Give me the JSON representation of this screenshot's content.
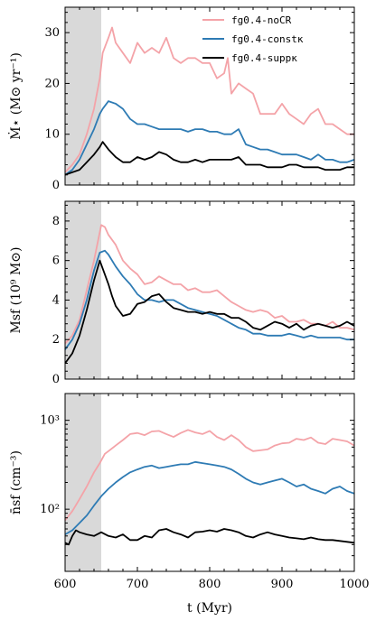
{
  "figure": {
    "xlabel": "t (Myr)",
    "x_ticks": [
      "600",
      "700",
      "800",
      "900",
      "1000"
    ],
    "shade_x": [
      600,
      650
    ],
    "shade_color": "#d9d9d9"
  },
  "series_styles": [
    {
      "name": "fg0.4-noCR",
      "color": "#f4a3a8"
    },
    {
      "name": "fg0.4-constκ",
      "color": "#2e7bb4"
    },
    {
      "name": "fg0.4-suppκ",
      "color": "#000000"
    }
  ],
  "chart_data": [
    {
      "type": "line",
      "id": "sfr",
      "ylabel": "Ṁ⋆ (M⊙ yr⁻¹)",
      "xlim": [
        600,
        1000
      ],
      "ylim": [
        0,
        35
      ],
      "yscale": "linear",
      "y_ticks": [
        {
          "v": 0,
          "label": "0"
        },
        {
          "v": 10,
          "label": "10"
        },
        {
          "v": 20,
          "label": "20"
        },
        {
          "v": 30,
          "label": "30"
        }
      ],
      "legend": "top-right",
      "series": [
        {
          "name": "fg0.4-noCR",
          "x": [
            600,
            610,
            620,
            630,
            640,
            648,
            652,
            660,
            665,
            670,
            680,
            690,
            700,
            710,
            720,
            730,
            740,
            750,
            760,
            770,
            780,
            790,
            800,
            810,
            820,
            825,
            830,
            840,
            850,
            860,
            870,
            880,
            890,
            900,
            910,
            920,
            930,
            940,
            950,
            960,
            970,
            980,
            990,
            1000
          ],
          "y": [
            2.5,
            4,
            6,
            10,
            15,
            21,
            26,
            29,
            31,
            28,
            26,
            24,
            28,
            26,
            27,
            26,
            29,
            25,
            24,
            25,
            25,
            24,
            24,
            21,
            22,
            25,
            18,
            20,
            19,
            18,
            14,
            14,
            14,
            16,
            14,
            13,
            12,
            14,
            15,
            12,
            12,
            11,
            10,
            10
          ]
        },
        {
          "name": "fg0.4-constκ",
          "x": [
            600,
            610,
            620,
            630,
            640,
            648,
            652,
            660,
            670,
            680,
            690,
            700,
            710,
            720,
            730,
            740,
            750,
            760,
            770,
            780,
            790,
            800,
            810,
            820,
            830,
            840,
            850,
            860,
            870,
            880,
            890,
            900,
            910,
            920,
            930,
            940,
            950,
            960,
            970,
            980,
            990,
            1000
          ],
          "y": [
            2,
            3,
            5,
            8,
            11,
            14,
            15,
            16.5,
            16,
            15,
            13,
            12,
            12,
            11.5,
            11,
            11,
            11,
            11,
            10.5,
            11,
            11,
            10.5,
            10.5,
            10,
            10,
            11,
            8,
            7.5,
            7,
            7,
            6.5,
            6,
            6,
            6,
            5.5,
            5,
            6,
            5,
            5,
            4.5,
            4.5,
            5
          ]
        },
        {
          "name": "fg0.4-suppκ",
          "x": [
            600,
            610,
            620,
            630,
            640,
            648,
            652,
            660,
            670,
            680,
            690,
            700,
            710,
            720,
            730,
            740,
            750,
            760,
            770,
            780,
            790,
            800,
            810,
            820,
            830,
            840,
            850,
            860,
            870,
            880,
            890,
            900,
            910,
            920,
            930,
            940,
            950,
            960,
            970,
            980,
            990,
            1000
          ],
          "y": [
            2,
            2.5,
            3,
            4.5,
            6,
            7.5,
            8.5,
            7,
            5.5,
            4.5,
            4.5,
            5.5,
            5,
            5.5,
            6.5,
            6,
            5,
            4.5,
            4.5,
            5,
            4.5,
            5,
            5,
            5,
            5,
            5.5,
            4,
            4,
            4,
            3.5,
            3.5,
            3.5,
            4,
            4,
            3.5,
            3.5,
            3.5,
            3,
            3,
            3,
            3.5,
            3.5
          ]
        }
      ]
    },
    {
      "type": "line",
      "id": "msf",
      "ylabel": "Msf (10⁹ M⊙)",
      "xlim": [
        600,
        1000
      ],
      "ylim": [
        0,
        9
      ],
      "yscale": "linear",
      "y_ticks": [
        {
          "v": 0,
          "label": "0"
        },
        {
          "v": 2,
          "label": "2"
        },
        {
          "v": 4,
          "label": "4"
        },
        {
          "v": 6,
          "label": "6"
        },
        {
          "v": 8,
          "label": "8"
        }
      ],
      "series": [
        {
          "name": "fg0.4-noCR",
          "x": [
            600,
            610,
            620,
            630,
            640,
            650,
            655,
            660,
            670,
            680,
            690,
            700,
            710,
            720,
            730,
            740,
            750,
            760,
            770,
            780,
            790,
            800,
            810,
            820,
            830,
            840,
            850,
            860,
            870,
            880,
            890,
            900,
            910,
            920,
            930,
            940,
            950,
            960,
            970,
            980,
            990,
            1000
          ],
          "y": [
            1.8,
            2.2,
            3,
            4.5,
            6,
            7.8,
            7.7,
            7.3,
            6.8,
            6,
            5.6,
            5.3,
            4.8,
            4.9,
            5.2,
            5,
            4.8,
            4.8,
            4.5,
            4.6,
            4.4,
            4.4,
            4.5,
            4.2,
            3.9,
            3.7,
            3.5,
            3.4,
            3.5,
            3.4,
            3.1,
            3.2,
            2.9,
            2.9,
            3,
            2.8,
            2.8,
            2.7,
            2.9,
            2.6,
            2.6,
            2.5
          ]
        },
        {
          "name": "fg0.4-constκ",
          "x": [
            600,
            610,
            620,
            630,
            640,
            648,
            655,
            660,
            670,
            680,
            690,
            700,
            710,
            720,
            730,
            740,
            750,
            760,
            770,
            780,
            790,
            800,
            810,
            820,
            830,
            840,
            850,
            860,
            870,
            880,
            890,
            900,
            910,
            920,
            930,
            940,
            950,
            960,
            970,
            980,
            990,
            1000
          ],
          "y": [
            1.5,
            2,
            2.8,
            4,
            5.5,
            6.4,
            6.5,
            6.3,
            5.7,
            5.2,
            4.8,
            4.3,
            4,
            4,
            3.9,
            4,
            4,
            3.8,
            3.6,
            3.5,
            3.4,
            3.3,
            3.2,
            3,
            2.8,
            2.6,
            2.5,
            2.3,
            2.3,
            2.2,
            2.2,
            2.2,
            2.3,
            2.2,
            2.1,
            2.2,
            2.1,
            2.1,
            2.1,
            2.1,
            2,
            2
          ]
        },
        {
          "name": "fg0.4-suppκ",
          "x": [
            600,
            610,
            620,
            630,
            640,
            648,
            652,
            660,
            665,
            670,
            680,
            690,
            700,
            710,
            720,
            730,
            740,
            750,
            760,
            770,
            780,
            790,
            800,
            810,
            820,
            830,
            840,
            850,
            860,
            870,
            880,
            890,
            900,
            910,
            920,
            930,
            940,
            950,
            960,
            970,
            980,
            990,
            1000
          ],
          "y": [
            0.8,
            1.3,
            2.2,
            3.5,
            5,
            6,
            5.6,
            4.8,
            4.2,
            3.7,
            3.2,
            3.3,
            3.8,
            3.9,
            4.2,
            4.3,
            3.9,
            3.6,
            3.5,
            3.4,
            3.4,
            3.3,
            3.4,
            3.3,
            3.3,
            3.1,
            3.1,
            2.9,
            2.6,
            2.5,
            2.7,
            2.9,
            2.8,
            2.6,
            2.8,
            2.5,
            2.7,
            2.8,
            2.7,
            2.6,
            2.7,
            2.9,
            2.7
          ]
        }
      ]
    },
    {
      "type": "line",
      "id": "nsf",
      "ylabel": "n̄sf (cm⁻³)",
      "xlim": [
        600,
        1000
      ],
      "ylim": [
        20,
        2000
      ],
      "yscale": "log",
      "y_ticks": [
        {
          "v": 100,
          "label": "10²"
        },
        {
          "v": 1000,
          "label": "10³"
        }
      ],
      "series": [
        {
          "name": "fg0.4-noCR",
          "x": [
            600,
            610,
            620,
            630,
            640,
            648,
            655,
            660,
            670,
            680,
            690,
            700,
            710,
            720,
            730,
            740,
            750,
            760,
            770,
            780,
            790,
            800,
            810,
            820,
            830,
            840,
            850,
            860,
            870,
            880,
            890,
            900,
            910,
            920,
            930,
            940,
            950,
            960,
            970,
            980,
            990,
            1000
          ],
          "y": [
            75,
            95,
            130,
            180,
            260,
            330,
            420,
            450,
            520,
            600,
            700,
            720,
            680,
            750,
            760,
            700,
            650,
            720,
            780,
            730,
            700,
            760,
            650,
            600,
            680,
            600,
            500,
            450,
            460,
            470,
            520,
            550,
            560,
            620,
            600,
            640,
            560,
            540,
            620,
            600,
            580,
            520
          ]
        },
        {
          "name": "fg0.4-constκ",
          "x": [
            600,
            610,
            620,
            630,
            640,
            650,
            660,
            670,
            680,
            690,
            700,
            710,
            720,
            730,
            740,
            750,
            760,
            770,
            780,
            790,
            800,
            810,
            820,
            830,
            840,
            850,
            860,
            870,
            880,
            890,
            900,
            910,
            920,
            930,
            940,
            950,
            960,
            970,
            980,
            990,
            1000
          ],
          "y": [
            52,
            58,
            70,
            85,
            110,
            140,
            170,
            200,
            230,
            260,
            280,
            300,
            310,
            290,
            300,
            310,
            320,
            320,
            340,
            330,
            320,
            310,
            300,
            280,
            250,
            220,
            200,
            190,
            200,
            210,
            220,
            200,
            180,
            190,
            170,
            160,
            150,
            170,
            180,
            160,
            150
          ]
        },
        {
          "name": "fg0.4-suppκ",
          "x": [
            600,
            605,
            610,
            615,
            620,
            630,
            640,
            650,
            660,
            670,
            680,
            690,
            700,
            710,
            720,
            730,
            740,
            750,
            760,
            770,
            780,
            790,
            800,
            810,
            820,
            830,
            840,
            850,
            860,
            870,
            880,
            890,
            900,
            910,
            920,
            930,
            940,
            950,
            960,
            970,
            980,
            990,
            1000
          ],
          "y": [
            42,
            40,
            50,
            58,
            55,
            52,
            50,
            55,
            50,
            48,
            52,
            45,
            45,
            50,
            48,
            58,
            60,
            55,
            52,
            48,
            55,
            56,
            58,
            56,
            60,
            58,
            55,
            50,
            48,
            52,
            55,
            52,
            50,
            48,
            47,
            46,
            48,
            46,
            45,
            45,
            44,
            43,
            42
          ]
        }
      ]
    }
  ]
}
